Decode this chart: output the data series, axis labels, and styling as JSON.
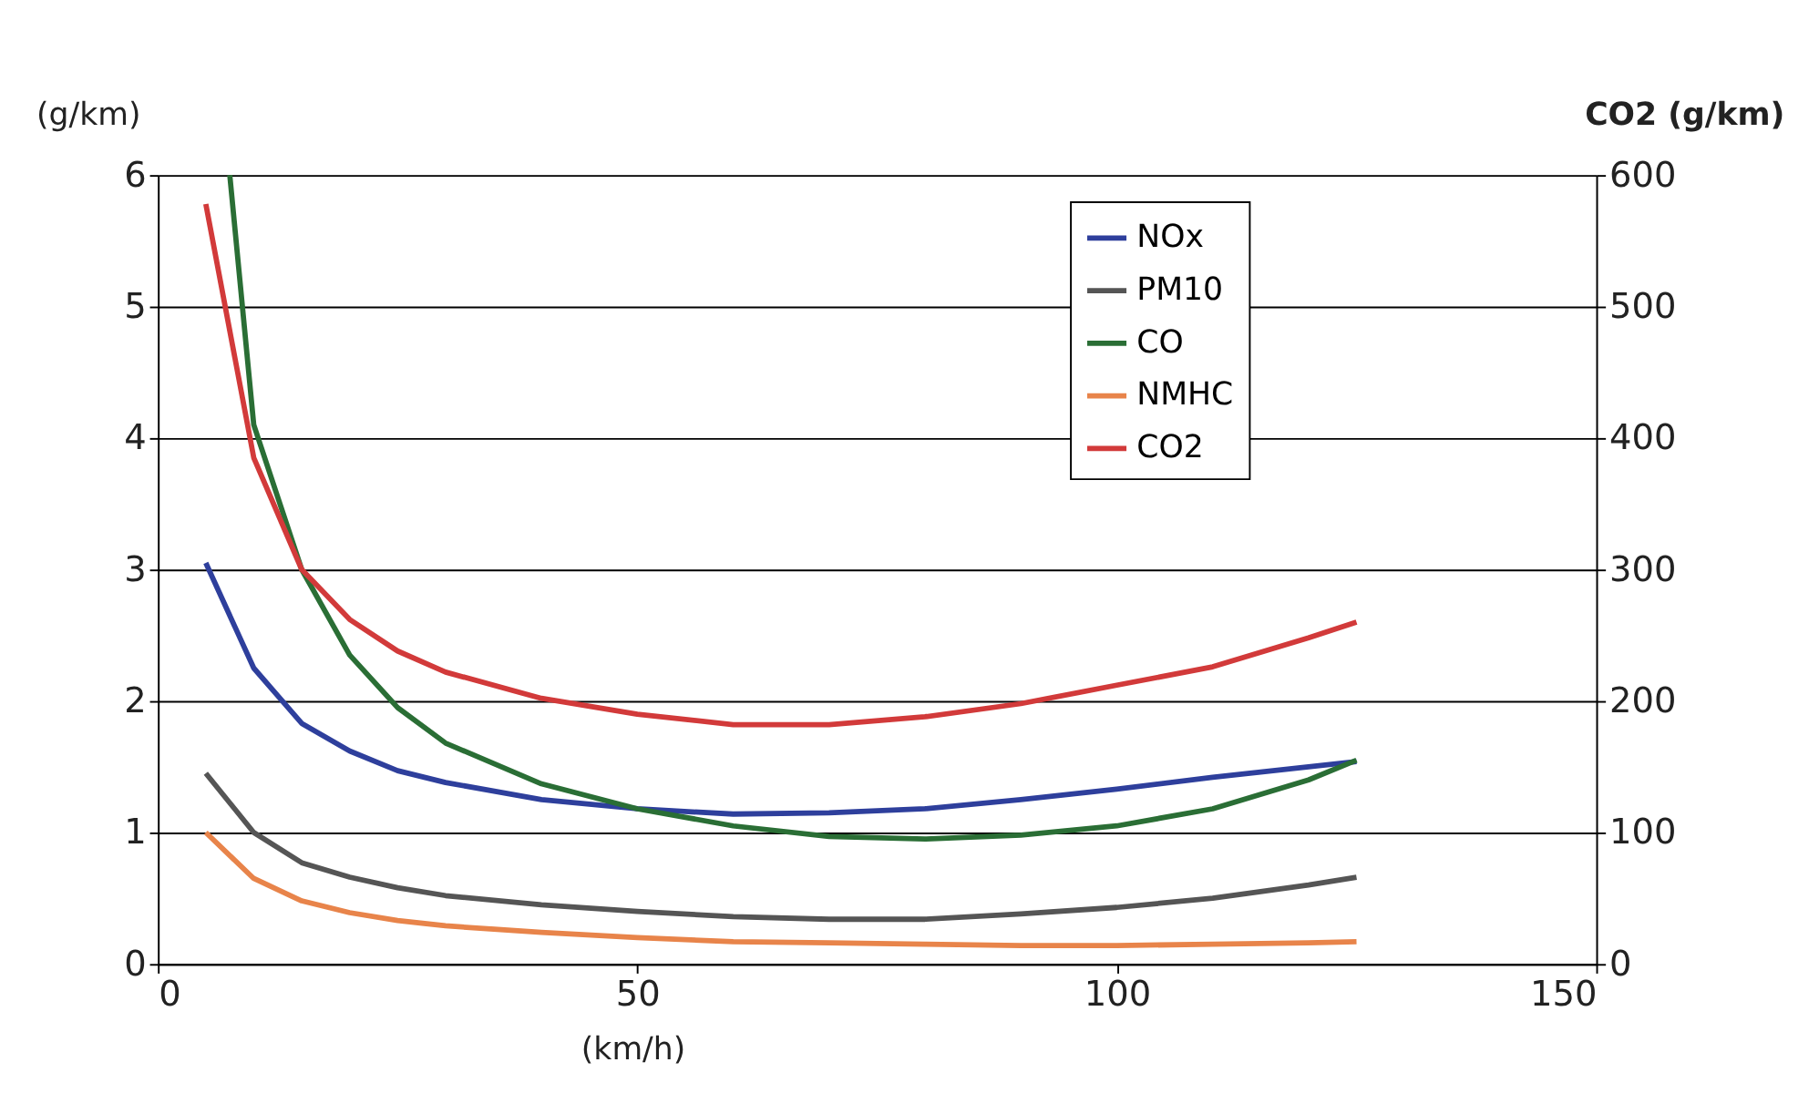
{
  "chart_data": {
    "type": "line",
    "xlabel": "(km/h)",
    "ylabel": "(g/km)",
    "y2label": "CO2 (g/km)",
    "xlim": [
      0,
      150
    ],
    "xticks": [
      0,
      50,
      100,
      150
    ],
    "ylim": [
      0,
      6
    ],
    "yticks": [
      0,
      1,
      2,
      3,
      4,
      5,
      6
    ],
    "y2lim": [
      0,
      600
    ],
    "y2ticks": [
      0,
      100,
      200,
      300,
      400,
      500,
      600
    ],
    "grid": "y",
    "legend": "top right",
    "marker": "none",
    "line_style": "solid",
    "x": [
      5,
      10,
      15,
      20,
      25,
      30,
      40,
      50,
      60,
      70,
      80,
      90,
      100,
      110,
      120,
      125
    ],
    "series": [
      {
        "name": "NOx",
        "color": "#2e3f9c",
        "values": [
          3.05,
          2.25,
          1.83,
          1.62,
          1.47,
          1.38,
          1.25,
          1.18,
          1.14,
          1.15,
          1.18,
          1.25,
          1.33,
          1.42,
          1.5,
          1.54
        ]
      },
      {
        "name": "PM10",
        "color": "#555555",
        "values": [
          1.45,
          1.0,
          0.77,
          0.66,
          0.58,
          0.52,
          0.45,
          0.4,
          0.36,
          0.34,
          0.34,
          0.38,
          0.43,
          0.5,
          0.6,
          0.66
        ]
      },
      {
        "name": "CO",
        "color": "#2a6e35",
        "x": [
          7.5,
          10,
          15,
          20,
          25,
          30,
          40,
          50,
          60,
          70,
          80,
          90,
          100,
          110,
          120,
          125
        ],
        "values": [
          6.0,
          4.1,
          3.0,
          2.35,
          1.95,
          1.68,
          1.37,
          1.18,
          1.05,
          0.97,
          0.95,
          0.98,
          1.05,
          1.18,
          1.4,
          1.55
        ]
      },
      {
        "name": "NMHC",
        "color": "#e8844a",
        "values": [
          1.0,
          0.65,
          0.48,
          0.39,
          0.33,
          0.29,
          0.24,
          0.2,
          0.17,
          0.16,
          0.15,
          0.14,
          0.14,
          0.15,
          0.16,
          0.17
        ]
      },
      {
        "name": "CO2",
        "color": "#d23a3a",
        "axis": "y2",
        "values": [
          578,
          385,
          300,
          262,
          238,
          222,
          202,
          190,
          182,
          182,
          188,
          198,
          212,
          226,
          248,
          260
        ]
      }
    ]
  }
}
